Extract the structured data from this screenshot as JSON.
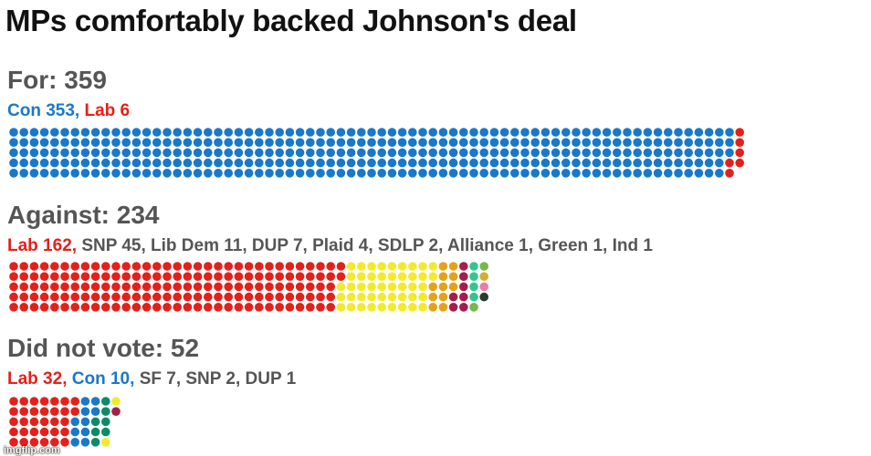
{
  "title": "MPs comfortably backed Johnson's deal",
  "colors": {
    "Con": "#1a78c8",
    "Lab": "#e4201b",
    "SNP": "#f3ea2e",
    "Lib Dem": "#e6a11b",
    "DUP": "#a51d4e",
    "Plaid": "#2fc88c",
    "SDLP": "#77b84a",
    "Alliance": "#d6ad2f",
    "Green": "#f178a8",
    "Ind": "#233f28",
    "SF": "#0e8a68",
    "neutral_text": "#555555"
  },
  "chart_data": [
    {
      "type": "waffle",
      "name": "for",
      "title": "For: 359",
      "rows": 5,
      "series": [
        {
          "name": "Con",
          "label": "Con 353",
          "value": 353
        },
        {
          "name": "Lab",
          "label": "Lab 6",
          "value": 6
        }
      ]
    },
    {
      "type": "waffle",
      "name": "against",
      "title": "Against: 234",
      "rows": 5,
      "series": [
        {
          "name": "Lab",
          "label": "Lab 162",
          "value": 162
        },
        {
          "name": "SNP",
          "label": "SNP 45",
          "value": 45
        },
        {
          "name": "Lib Dem",
          "label": "Lib Dem 11",
          "value": 11
        },
        {
          "name": "DUP",
          "label": "DUP 7",
          "value": 7
        },
        {
          "name": "Plaid",
          "label": "Plaid 4",
          "value": 4
        },
        {
          "name": "SDLP",
          "label": "SDLP 2",
          "value": 2
        },
        {
          "name": "Alliance",
          "label": "Alliance 1",
          "value": 1
        },
        {
          "name": "Green",
          "label": "Green 1",
          "value": 1
        },
        {
          "name": "Ind",
          "label": "Ind 1",
          "value": 1
        }
      ]
    },
    {
      "type": "waffle",
      "name": "did-not-vote",
      "title": "Did not vote: 52",
      "rows": 5,
      "series": [
        {
          "name": "Lab",
          "label": "Lab 32",
          "value": 32
        },
        {
          "name": "Con",
          "label": "Con 10",
          "value": 10
        },
        {
          "name": "SF",
          "label": "SF 7",
          "value": 7
        },
        {
          "name": "SNP",
          "label": "SNP 2",
          "value": 2
        },
        {
          "name": "DUP",
          "label": "DUP 1",
          "value": 1
        }
      ]
    }
  ],
  "watermark": "imgflip.com"
}
